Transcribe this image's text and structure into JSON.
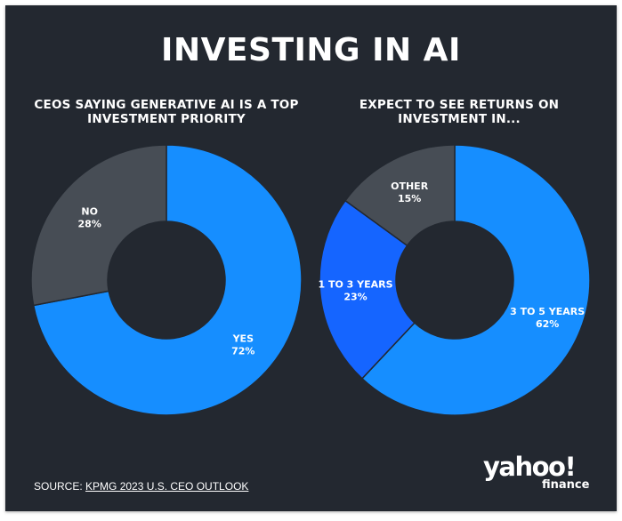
{
  "title": "INVESTING IN AI",
  "chart_data": [
    {
      "type": "pie",
      "title": "CEOS SAYING GENERATIVE AI IS A TOP INVESTMENT PRIORITY",
      "slices": [
        {
          "label": "YES",
          "value": 72,
          "value_label": "72%",
          "color": "#168EFF"
        },
        {
          "label": "NO",
          "value": 28,
          "value_label": "28%",
          "color": "#474D55"
        }
      ]
    },
    {
      "type": "pie",
      "title": "EXPECT TO SEE RETURNS ON INVESTMENT IN...",
      "slices": [
        {
          "label": "3 TO 5 YEARS",
          "value": 62,
          "value_label": "62%",
          "color": "#168EFF"
        },
        {
          "label": "1 TO 3 YEARS",
          "value": 23,
          "value_label": "23%",
          "color": "#1565FF"
        },
        {
          "label": "OTHER",
          "value": 15,
          "value_label": "15%",
          "color": "#474D55"
        }
      ]
    }
  ],
  "footer": {
    "source_prefix": "SOURCE: ",
    "source_link": "KPMG 2023 U.S. CEO OUTLOOK",
    "logo_main": "yahoo!",
    "logo_sub": "finance"
  },
  "colors": {
    "background": "#232830",
    "separator": "#232830",
    "text": "#FFFFFF"
  }
}
